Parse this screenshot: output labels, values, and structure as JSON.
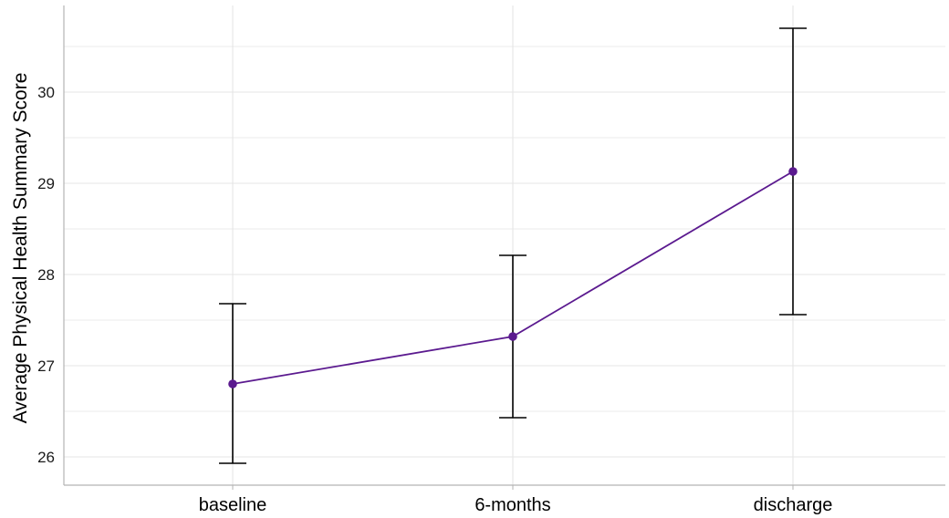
{
  "chart_data": {
    "type": "line",
    "title": "",
    "xlabel": "",
    "ylabel": "Average Physical Health Summary Score",
    "categories": [
      "baseline",
      "6-months",
      "discharge"
    ],
    "series": [
      {
        "values": [
          26.8,
          27.32,
          29.13
        ],
        "error_low": [
          25.93,
          26.43,
          27.56
        ],
        "error_high": [
          27.68,
          28.21,
          30.7
        ]
      }
    ],
    "y_ticks": [
      26,
      27,
      28,
      29,
      30
    ],
    "ylim": [
      25.69,
      30.95
    ],
    "grid": true,
    "legend": "none",
    "colors": {
      "series": "#5b1a8f",
      "errorbar": "#000000",
      "grid": "#e5e5e5",
      "axis": "#b3b3b3"
    }
  }
}
